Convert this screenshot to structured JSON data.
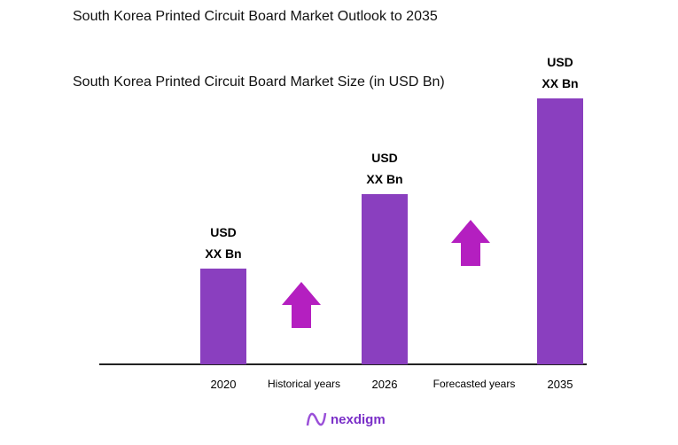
{
  "chart_data": {
    "type": "bar",
    "title": "South Korea Printed Circuit Board Market Outlook to 2035",
    "subtitle": "South Korea Printed Circuit Board Market Size (in USD Bn)",
    "categories": [
      "2020",
      "2026",
      "2035"
    ],
    "values": [
      0.36,
      0.64,
      1.0
    ],
    "value_scale": "relative",
    "data_labels": [
      [
        "USD",
        "XX Bn"
      ],
      [
        "USD",
        "XX Bn"
      ],
      [
        "USD",
        "XX Bn"
      ]
    ],
    "period_labels": [
      "Historical years",
      "Forecasted years"
    ],
    "grid": false,
    "colors": {
      "bar": "#8a3fbf",
      "arrow": "#b41fc0"
    }
  },
  "logo": {
    "text": "nexdigm"
  }
}
